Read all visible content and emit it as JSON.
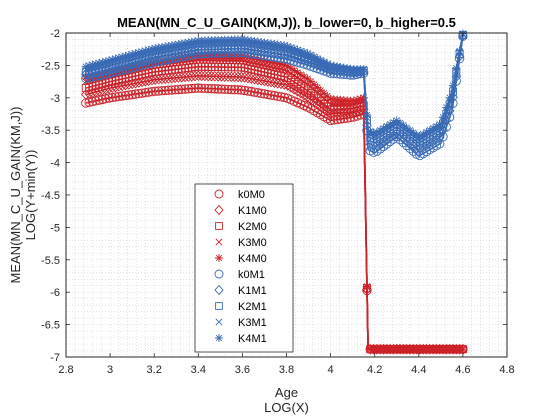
{
  "chart_data": {
    "type": "line",
    "title": "MEAN(MN_C_U_GAIN(KM,J)), b_lower=0, b_higher=0.5",
    "xlabel": "Age",
    "xlabel2": "LOG(X)",
    "ylabel": "MEAN(MN_C_U_GAIN(KM,J))",
    "ylabel2": "LOG(Y+min(Y))",
    "xlim": [
      2.8,
      4.8
    ],
    "ylim": [
      -7,
      -2
    ],
    "xticks": [
      "2.8",
      "3",
      "3.2",
      "3.4",
      "3.6",
      "3.8",
      "4",
      "4.2",
      "4.4",
      "4.6",
      "4.8"
    ],
    "yticks": [
      "-7",
      "-6.5",
      "-6",
      "-5.5",
      "-5",
      "-4.5",
      "-4",
      "-3.5",
      "-3",
      "-2.5",
      "-2"
    ],
    "grid": "minor-dotted",
    "legend_position": "lower-center",
    "colors": {
      "red": "#cc2229",
      "blue": "#3a6bb5"
    },
    "series": [
      {
        "name": "k0M0",
        "marker": "circle",
        "color": "red",
        "x": [
          2.89,
          3.0,
          3.2,
          3.4,
          3.6,
          3.8,
          3.9,
          4.0,
          4.1,
          4.15,
          4.17,
          4.3,
          4.5,
          4.6
        ],
        "y": [
          -3.08,
          -3.0,
          -2.9,
          -2.85,
          -2.88,
          -3.0,
          -3.15,
          -3.35,
          -3.3,
          -3.25,
          -6.88,
          -6.88,
          -6.88,
          -6.88
        ]
      },
      {
        "name": "K1M0",
        "marker": "diamond",
        "color": "red",
        "x": [
          2.89,
          3.0,
          3.2,
          3.4,
          3.6,
          3.8,
          3.9,
          4.0,
          4.1,
          4.15,
          4.17,
          4.3,
          4.5,
          4.6
        ],
        "y": [
          -2.95,
          -2.85,
          -2.72,
          -2.66,
          -2.68,
          -2.8,
          -3.0,
          -3.25,
          -3.22,
          -3.18,
          -6.88,
          -6.88,
          -6.88,
          -6.88
        ]
      },
      {
        "name": "K2M0",
        "marker": "square",
        "color": "red",
        "x": [
          2.89,
          3.0,
          3.2,
          3.4,
          3.6,
          3.8,
          3.9,
          4.0,
          4.1,
          4.15,
          4.17,
          4.3,
          4.5,
          4.6
        ],
        "y": [
          -2.85,
          -2.75,
          -2.6,
          -2.52,
          -2.53,
          -2.68,
          -2.9,
          -3.18,
          -3.16,
          -3.12,
          -6.88,
          -6.88,
          -6.88,
          -6.88
        ]
      },
      {
        "name": "K3M0",
        "marker": "x",
        "color": "red",
        "x": [
          2.89,
          3.0,
          3.2,
          3.4,
          3.6,
          3.8,
          3.9,
          4.0,
          4.1,
          4.15,
          4.17,
          4.3,
          4.5,
          4.6
        ],
        "y": [
          -2.75,
          -2.66,
          -2.5,
          -2.42,
          -2.43,
          -2.58,
          -2.8,
          -3.1,
          -3.1,
          -3.05,
          -6.88,
          -6.88,
          -6.88,
          -6.88
        ]
      },
      {
        "name": "K4M0",
        "marker": "asterisk",
        "color": "red",
        "x": [
          2.89,
          3.0,
          3.2,
          3.4,
          3.6,
          3.8,
          3.9,
          4.0,
          4.1,
          4.15,
          4.17,
          4.3,
          4.5,
          4.6
        ],
        "y": [
          -2.68,
          -2.6,
          -2.44,
          -2.35,
          -2.36,
          -2.5,
          -2.72,
          -3.02,
          -3.05,
          -3.0,
          -6.88,
          -6.88,
          -6.88,
          -6.88
        ]
      },
      {
        "name": "k0M1",
        "marker": "circle",
        "color": "blue",
        "x": [
          2.89,
          3.0,
          3.2,
          3.4,
          3.6,
          3.8,
          3.9,
          4.0,
          4.1,
          4.15,
          4.17,
          4.2,
          4.3,
          4.4,
          4.5,
          4.55,
          4.6
        ],
        "y": [
          -2.7,
          -2.62,
          -2.45,
          -2.32,
          -2.3,
          -2.4,
          -2.5,
          -2.62,
          -2.65,
          -2.62,
          -3.8,
          -3.85,
          -3.6,
          -3.9,
          -3.7,
          -3.2,
          -2.05
        ]
      },
      {
        "name": "K1M1",
        "marker": "diamond",
        "color": "blue",
        "x": [
          2.89,
          3.0,
          3.2,
          3.4,
          3.6,
          3.8,
          3.9,
          4.0,
          4.1,
          4.15,
          4.17,
          4.2,
          4.3,
          4.4,
          4.5,
          4.55,
          4.6
        ],
        "y": [
          -2.64,
          -2.56,
          -2.38,
          -2.26,
          -2.24,
          -2.34,
          -2.44,
          -2.58,
          -2.62,
          -2.6,
          -3.7,
          -3.75,
          -3.55,
          -3.8,
          -3.6,
          -3.1,
          -2.04
        ]
      },
      {
        "name": "K2M1",
        "marker": "square",
        "color": "blue",
        "x": [
          2.89,
          3.0,
          3.2,
          3.4,
          3.6,
          3.8,
          3.9,
          4.0,
          4.1,
          4.15,
          4.17,
          4.2,
          4.3,
          4.4,
          4.5,
          4.55,
          4.6
        ],
        "y": [
          -2.6,
          -2.5,
          -2.32,
          -2.2,
          -2.18,
          -2.28,
          -2.4,
          -2.55,
          -2.6,
          -2.58,
          -3.6,
          -3.65,
          -3.45,
          -3.7,
          -3.5,
          -3.0,
          -2.03
        ]
      },
      {
        "name": "K3M1",
        "marker": "x",
        "color": "blue",
        "x": [
          2.89,
          3.0,
          3.2,
          3.4,
          3.6,
          3.8,
          3.9,
          4.0,
          4.1,
          4.15,
          4.17,
          4.2,
          4.3,
          4.4,
          4.5,
          4.55,
          4.6
        ],
        "y": [
          -2.56,
          -2.46,
          -2.28,
          -2.16,
          -2.14,
          -2.24,
          -2.36,
          -2.52,
          -2.58,
          -2.57,
          -3.55,
          -3.6,
          -3.4,
          -3.65,
          -3.45,
          -2.95,
          -2.02
        ]
      },
      {
        "name": "K4M1",
        "marker": "asterisk",
        "color": "blue",
        "x": [
          2.89,
          3.0,
          3.2,
          3.4,
          3.6,
          3.8,
          3.9,
          4.0,
          4.1,
          4.15,
          4.17,
          4.2,
          4.3,
          4.4,
          4.5,
          4.55,
          4.6
        ],
        "y": [
          -2.52,
          -2.42,
          -2.24,
          -2.12,
          -2.1,
          -2.2,
          -2.32,
          -2.5,
          -2.56,
          -2.56,
          -3.5,
          -3.55,
          -3.35,
          -3.6,
          -3.4,
          -2.9,
          -2.01
        ]
      }
    ]
  }
}
